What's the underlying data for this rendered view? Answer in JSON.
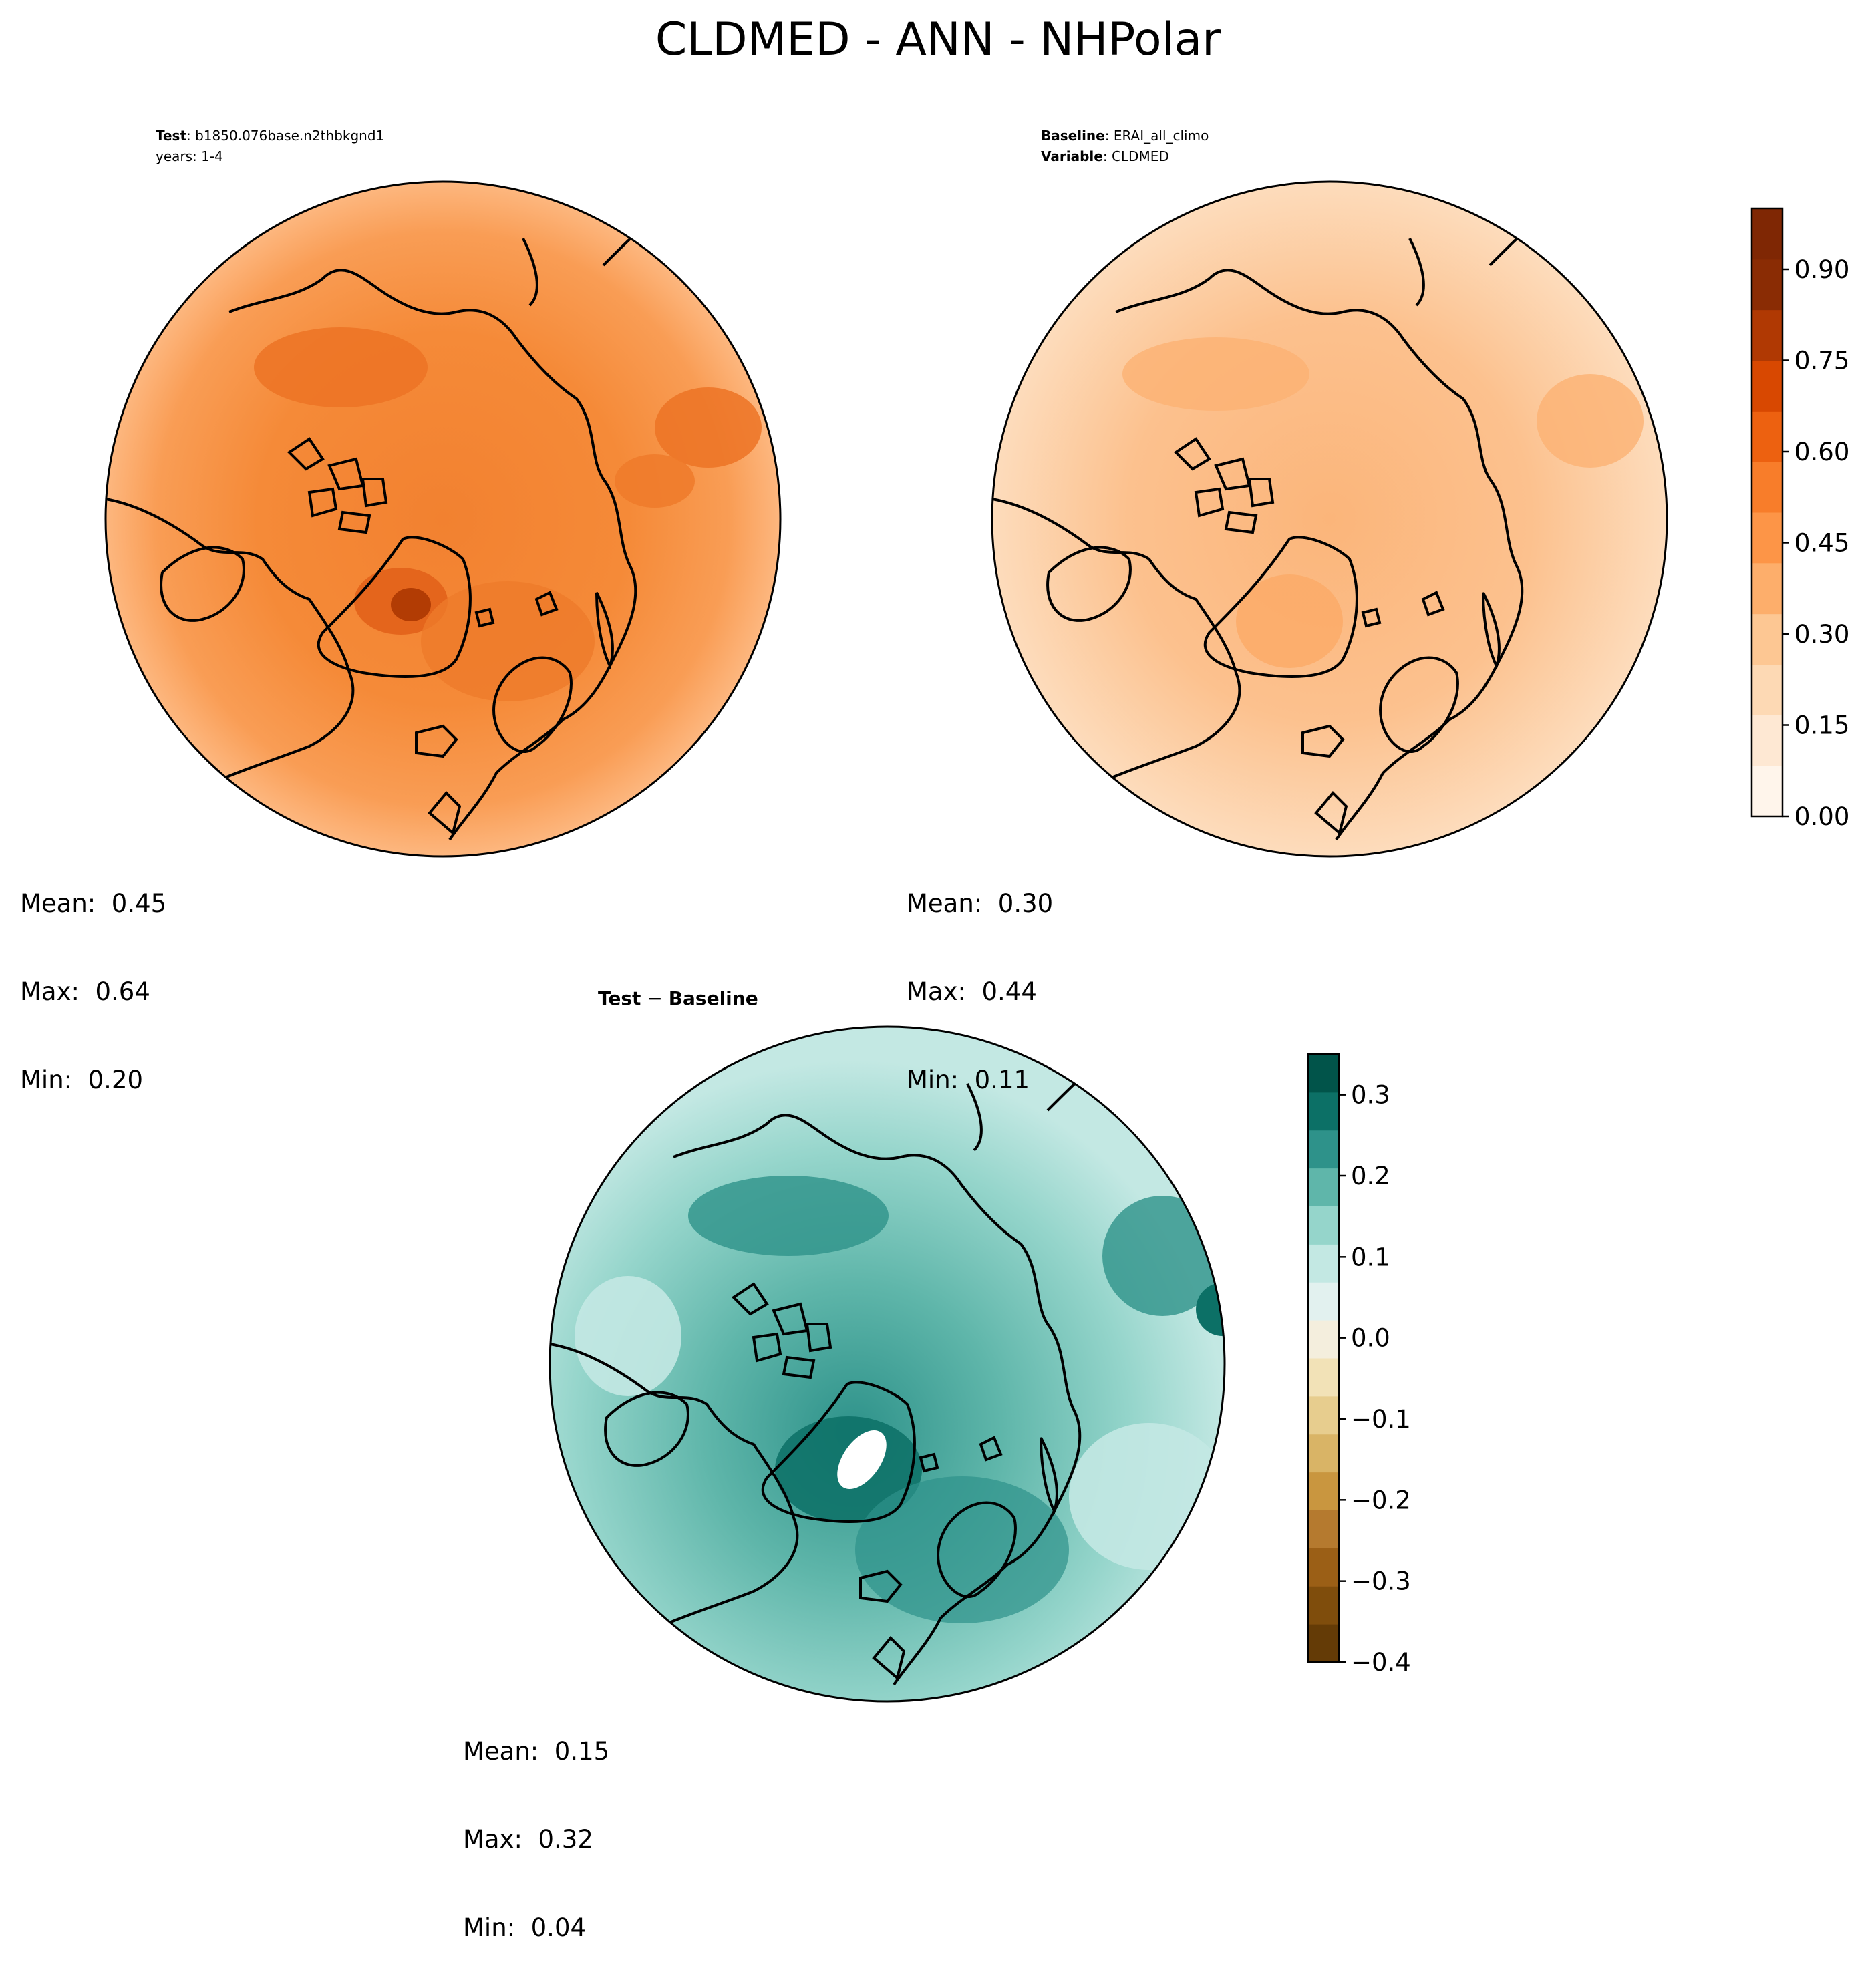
{
  "figure": {
    "title": "CLDMED - ANN - NHPolar"
  },
  "panels": {
    "test": {
      "label_bold": "Test",
      "label_value": ": b1850.076base.n2thbkgnd1",
      "line2": "years: 1-4",
      "mean": "Mean:  0.45",
      "max": "Max:  0.64",
      "min": "Min:  0.20"
    },
    "baseline": {
      "label_bold": "Baseline",
      "label_value": ": ERAI_all_climo",
      "line2_bold": "Variable",
      "line2_value": ": CLDMED",
      "mean": "Mean:  0.30",
      "max": "Max:  0.44",
      "min": "Min:  0.11"
    },
    "diff": {
      "title_a": "Test",
      "title_op": " − ",
      "title_b": "Baseline",
      "mean": "Mean:  0.15",
      "max": "Max:  0.32",
      "min": "Min:  0.04"
    }
  },
  "colorbars": {
    "top": {
      "ticks": [
        "0.00",
        "0.15",
        "0.30",
        "0.45",
        "0.60",
        "0.75",
        "0.90"
      ],
      "tick_values": [
        0.0,
        0.15,
        0.3,
        0.45,
        0.6,
        0.75,
        0.9
      ],
      "range": [
        0.0,
        1.0
      ],
      "levels": 20,
      "colors": [
        "#fff5eb",
        "#fee8d3",
        "#fdd9b4",
        "#fdc793",
        "#fdae6b",
        "#fd9547",
        "#f87d2a",
        "#ed6110",
        "#d84801",
        "#b03903",
        "#8a2c04",
        "#7f2704"
      ]
    },
    "diff": {
      "ticks": [
        "0.3",
        "0.2",
        "0.1",
        "0.0",
        "−0.1",
        "−0.2",
        "−0.3",
        "−0.4"
      ],
      "tick_values": [
        0.3,
        0.2,
        0.1,
        0.0,
        -0.1,
        -0.2,
        -0.3,
        -0.4
      ],
      "range": [
        -0.4,
        0.35
      ],
      "band_colors": [
        "#643b06",
        "#7f4d0c",
        "#9b5f16",
        "#b57a2f",
        "#c9963f",
        "#d9b466",
        "#e7cd8e",
        "#f2e2b7",
        "#f4eedd",
        "#e2f1ef",
        "#c3e8e3",
        "#95d5cb",
        "#5fb6aa",
        "#2e928a",
        "#0c7066",
        "#01544a"
      ]
    },
    "maps": {
      "test_fill": [
        "#fdae6b",
        "#f99645",
        "#f28130",
        "#e86a1c",
        "#d4520a",
        "#b23c04"
      ],
      "baseline_fill": [
        "#fde0c2",
        "#fdcfa0",
        "#fdbe86",
        "#fcae6e",
        "#f9a05c"
      ],
      "diff_fill": [
        "#c3e8e3",
        "#95d5cb",
        "#5fb6aa",
        "#2e928a",
        "#0c7066"
      ],
      "coast_color": "#000000"
    }
  }
}
